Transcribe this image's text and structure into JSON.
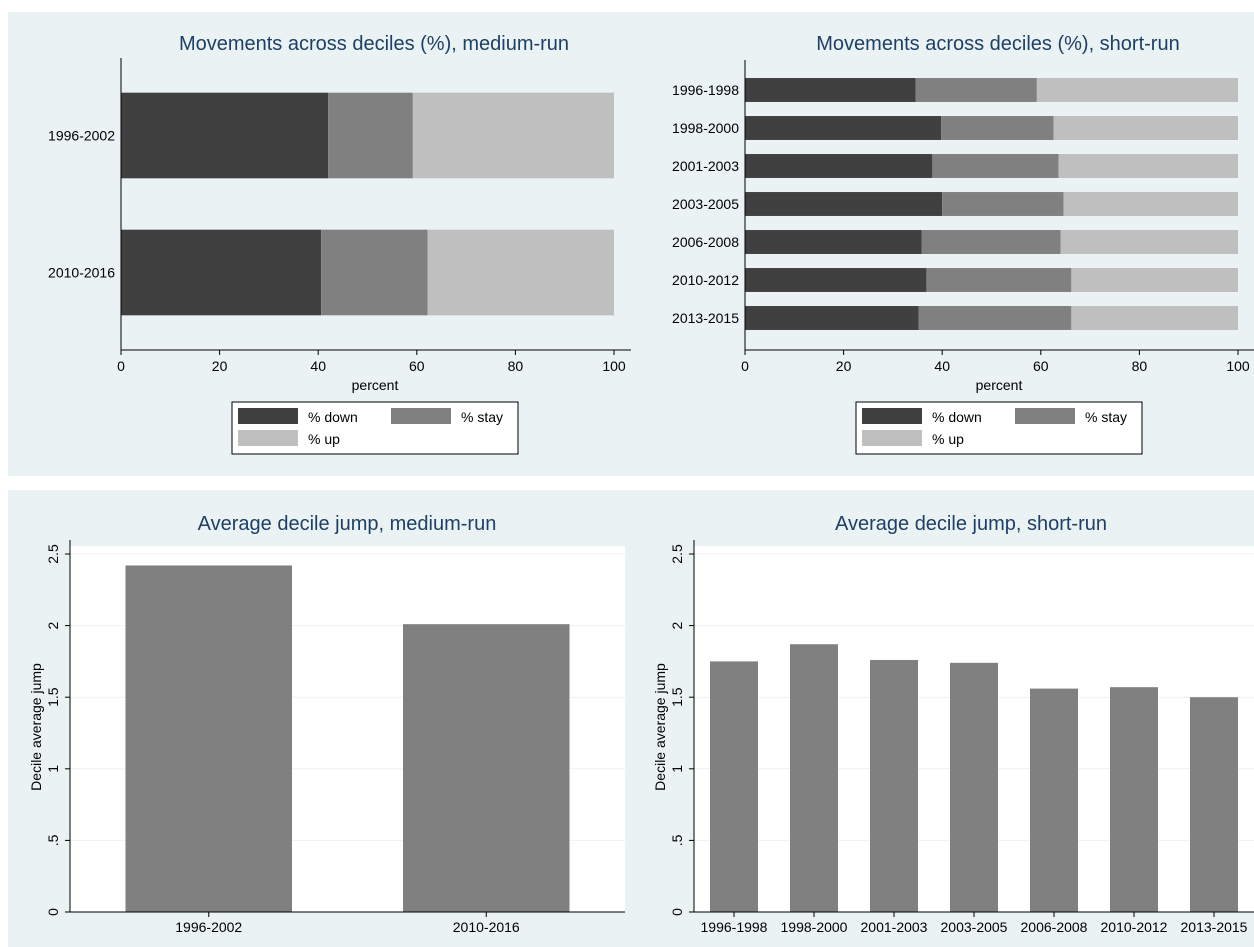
{
  "colors": {
    "down": "#404040",
    "stay": "#808080",
    "up": "#bfbfbf",
    "bar": "#808080",
    "title": "#1e3f66",
    "panel_bg": "#eaf2f3"
  },
  "chart_data": [
    {
      "type": "bar",
      "orientation": "horizontal",
      "stacked": true,
      "title": "Movements across deciles (%), medium-run",
      "xlabel": "percent",
      "categories": [
        "1996-2002",
        "2010-2016"
      ],
      "series": [
        {
          "name": "% down",
          "values": [
            42,
            40.6
          ]
        },
        {
          "name": "% stay",
          "values": [
            17.2,
            21.6
          ]
        },
        {
          "name": "% up",
          "values": [
            40.8,
            37.8
          ]
        }
      ],
      "xlim": [
        0,
        100
      ],
      "xticks": [
        "0",
        "20",
        "40",
        "60",
        "80",
        "100"
      ],
      "legend": [
        "% down",
        "% stay",
        "% up"
      ]
    },
    {
      "type": "bar",
      "orientation": "horizontal",
      "stacked": true,
      "title": "Movements across deciles (%), short-run",
      "xlabel": "percent",
      "categories": [
        "1996-1998",
        "1998-2000",
        "2001-2003",
        "2003-2005",
        "2006-2008",
        "2010-2012",
        "2013-2015"
      ],
      "series": [
        {
          "name": "% down",
          "values": [
            34.6,
            39.8,
            38.0,
            40.0,
            35.8,
            36.8,
            35.2
          ]
        },
        {
          "name": "% stay",
          "values": [
            24.6,
            22.8,
            25.6,
            24.6,
            28.2,
            29.4,
            31.0
          ]
        },
        {
          "name": "% up",
          "values": [
            40.8,
            37.4,
            36.4,
            35.4,
            36.0,
            33.8,
            33.8
          ]
        }
      ],
      "xlim": [
        0,
        100
      ],
      "xticks": [
        "0",
        "20",
        "40",
        "60",
        "80",
        "100"
      ],
      "legend": [
        "% down",
        "% stay",
        "% up"
      ]
    },
    {
      "type": "bar",
      "title": "Average decile jump, medium-run",
      "ylabel": "Decile average jump",
      "categories": [
        "1996-2002",
        "2010-2016"
      ],
      "values": [
        2.42,
        2.01
      ],
      "ylim": [
        0,
        2.5
      ],
      "yticks": [
        "0",
        ".5",
        "1",
        "1.5",
        "2",
        "2.5"
      ],
      "grid": true
    },
    {
      "type": "bar",
      "title": "Average decile jump, short-run",
      "ylabel": "Decile average jump",
      "categories": [
        "1996-1998",
        "1998-2000",
        "2001-2003",
        "2003-2005",
        "2006-2008",
        "2010-2012",
        "2013-2015"
      ],
      "values": [
        1.75,
        1.87,
        1.76,
        1.74,
        1.56,
        1.57,
        1.5
      ],
      "ylim": [
        0,
        2.5
      ],
      "yticks": [
        "0",
        ".5",
        "1",
        "1.5",
        "2",
        "2.5"
      ],
      "grid": true
    }
  ]
}
